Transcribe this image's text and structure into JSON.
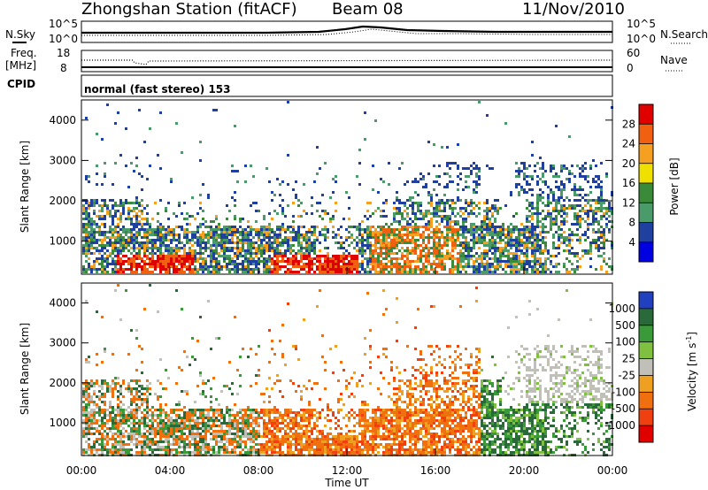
{
  "header": {
    "station": "Zhongshan Station (fitACF)",
    "beam": "Beam 08",
    "date": "11/Nov/2010"
  },
  "top_panel": {
    "left_label": "N.Sky",
    "right_label": "N.Search",
    "left_ticks": [
      "10^5",
      "10^0"
    ],
    "right_ticks": [
      "10^5",
      "10^0"
    ]
  },
  "freq_panel": {
    "left_label_1": "Freq.",
    "left_label_2": "[MHz]",
    "left_ticks": [
      "18",
      "8"
    ],
    "right_label": "Nave",
    "right_ticks": [
      "60",
      "0"
    ]
  },
  "cpid": {
    "label": "CPID",
    "text": "normal (fast stereo) 153"
  },
  "axes": {
    "ylabel": "Slant Range [km]",
    "xlabel": "Time UT",
    "y_ticks": [
      "4000",
      "3000",
      "2000",
      "1000"
    ],
    "x_ticks": [
      "00:00",
      "04:00",
      "08:00",
      "12:00",
      "16:00",
      "20:00",
      "00:00"
    ]
  },
  "power_colorbar": {
    "label": "Power [dB]",
    "ticks": [
      "28",
      "24",
      "20",
      "16",
      "12",
      "8",
      "4"
    ],
    "colors": [
      "#e00000",
      "#f06010",
      "#f5a020",
      "#f0e000",
      "#3a8a3a",
      "#4a9a6a",
      "#2040a0",
      "#0000e0"
    ]
  },
  "velocity_colorbar": {
    "label": "Velocity [m s^-1]",
    "label_main": "Velocity",
    "label_unit": "[m s",
    "label_sup": "-1",
    "label_close": "]",
    "ticks": [
      "1000",
      "500",
      "100",
      "25",
      "-25",
      "-100",
      "-500",
      "-1000"
    ],
    "colors": [
      "#2040c0",
      "#2a6a3a",
      "#3a9a3a",
      "#80c040",
      "#c0c0b8",
      "#f0a020",
      "#f07010",
      "#f04010",
      "#e00000"
    ]
  },
  "chart_data": {
    "type": "heatmap",
    "x_range_hours": [
      0,
      24
    ],
    "y_range_km": [
      180,
      4500
    ],
    "panels": [
      "Power [dB]",
      "Velocity [m s^-1]"
    ]
  }
}
